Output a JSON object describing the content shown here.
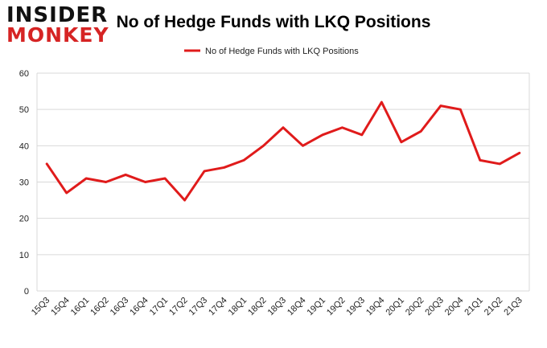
{
  "logo": {
    "line1": "INSIDER",
    "line2": "MONKEY"
  },
  "chart_data": {
    "type": "line",
    "title": "No of Hedge Funds with LKQ Positions",
    "categories": [
      "15Q3",
      "15Q4",
      "16Q1",
      "16Q2",
      "16Q3",
      "16Q4",
      "17Q1",
      "17Q2",
      "17Q3",
      "17Q4",
      "18Q1",
      "18Q2",
      "18Q3",
      "18Q4",
      "19Q1",
      "19Q2",
      "19Q3",
      "19Q4",
      "20Q1",
      "20Q2",
      "20Q3",
      "20Q4",
      "21Q1",
      "21Q2",
      "21Q3"
    ],
    "series": [
      {
        "name": "No of Hedge Funds with LKQ Positions",
        "color": "#e01b1b",
        "values": [
          35,
          27,
          31,
          30,
          32,
          30,
          31,
          25,
          33,
          34,
          36,
          40,
          45,
          40,
          43,
          45,
          43,
          52,
          41,
          44,
          51,
          50,
          36,
          35,
          38
        ]
      }
    ],
    "ylim": [
      0,
      60
    ],
    "yticks": [
      "0",
      "10",
      "20",
      "30",
      "40",
      "50",
      "60"
    ],
    "grid": true,
    "legend_position": "top-center"
  }
}
